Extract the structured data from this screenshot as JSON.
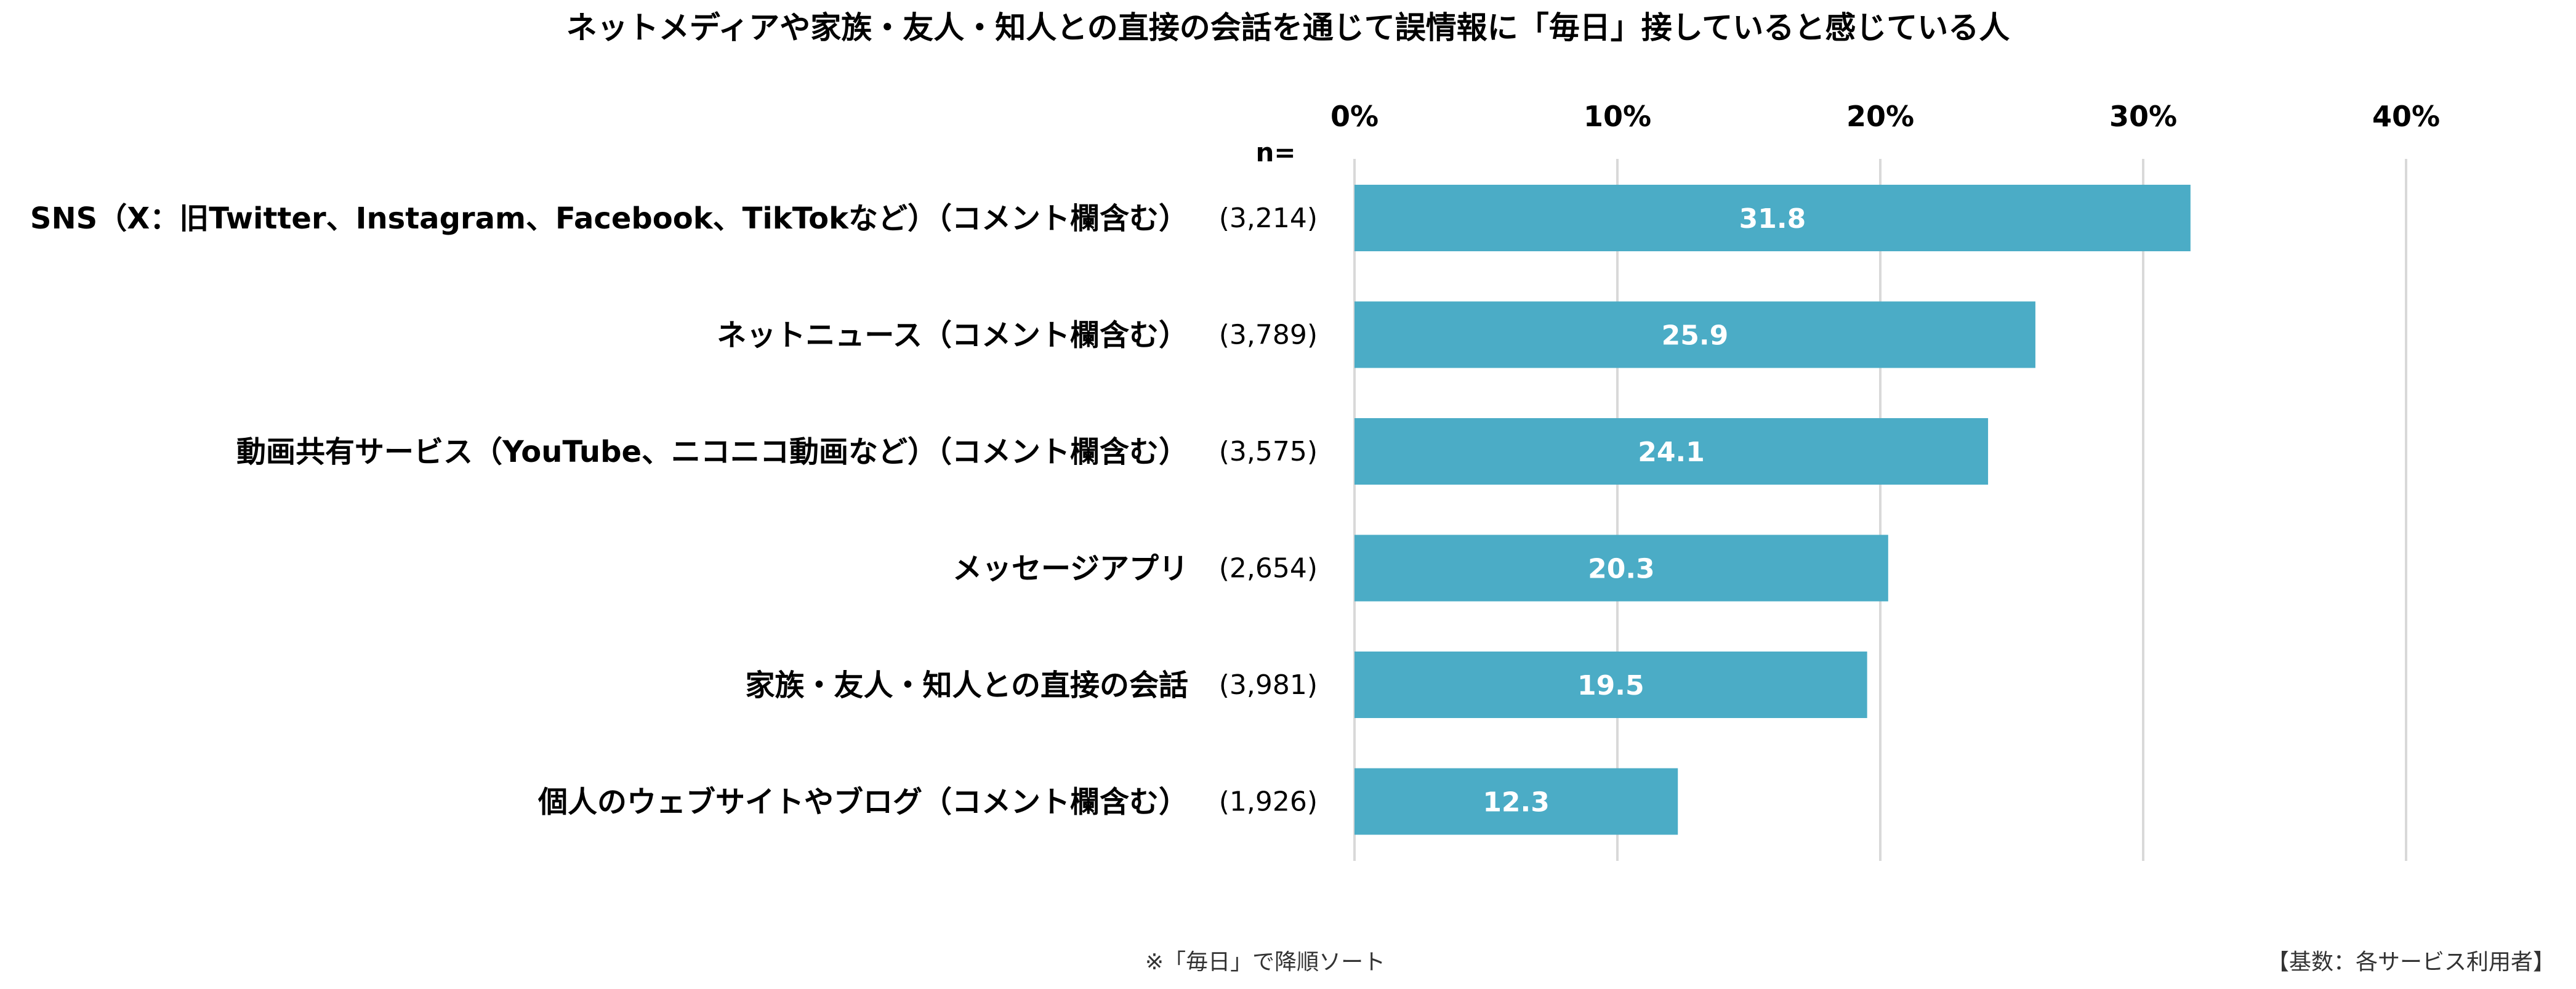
{
  "chart_data": {
    "type": "bar",
    "orientation": "horizontal",
    "title": "ネットメディアや家族・友人・知人との直接の会話を通じて誤情報に「毎日」接していると感じている人",
    "n_label": "n=",
    "categories": [
      "SNS（X：旧Twitter、Instagram、Facebook、TikTokなど）（コメント欄含む）",
      "ネットニュース（コメント欄含む）",
      "動画共有サービス（YouTube、ニコニコ動画など）（コメント欄含む）",
      "メッセージアプリ",
      "家族・友人・知人との直接の会話",
      "個人のウェブサイトやブログ（コメント欄含む）"
    ],
    "n_values": [
      "(3,214)",
      "(3,789)",
      "(3,575)",
      "(2,654)",
      "(3,981)",
      "(1,926)"
    ],
    "values": [
      31.8,
      25.9,
      24.1,
      20.3,
      19.5,
      12.3
    ],
    "data_labels": [
      "31.8",
      "25.9",
      "24.1",
      "20.3",
      "19.5",
      "12.3"
    ],
    "x_ticks": [
      "0%",
      "10%",
      "20%",
      "30%",
      "40%"
    ],
    "xlim": [
      0,
      40
    ],
    "grid": true,
    "bar_color": "#4bacc6",
    "footnote": "※「毎日」で降順ソート",
    "base_note": "【基数：各サービス利用者】"
  }
}
